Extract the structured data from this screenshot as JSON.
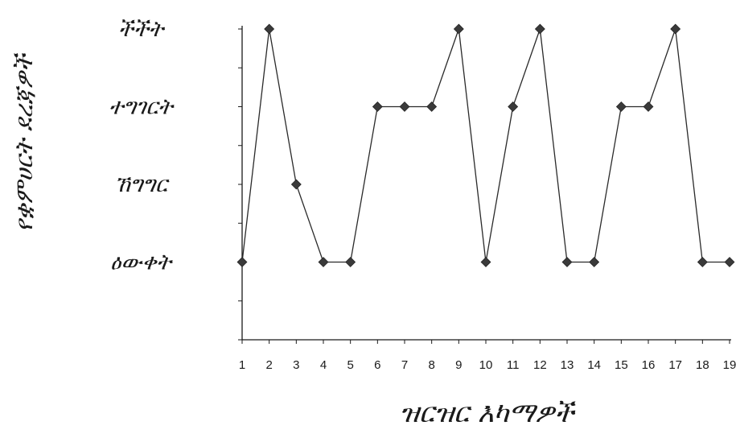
{
  "chart_data": {
    "type": "line",
    "title": "",
    "xlabel": "ዝርዝር እካማዎች",
    "ylabel": "የቋምሀርት ደረጃዎች",
    "x": [
      1,
      2,
      3,
      4,
      5,
      6,
      7,
      8,
      9,
      10,
      11,
      12,
      13,
      14,
      15,
      16,
      17,
      18,
      19
    ],
    "y_categories": [
      "ዕውቀት",
      "ኸግግር",
      "ተግገርት",
      "ችችት"
    ],
    "y_category_levels": [
      1,
      2,
      3,
      4
    ],
    "series": [
      {
        "values": [
          1,
          4,
          2,
          1,
          1,
          3,
          3,
          3,
          4,
          1,
          3,
          4,
          1,
          1,
          3,
          3,
          4,
          1,
          1
        ]
      }
    ],
    "ylim": [
      0,
      4
    ],
    "grid": false,
    "legend": "none",
    "line_color": "#2a2a2a",
    "marker_color": "#3a3a3a",
    "marker": "diamond"
  }
}
